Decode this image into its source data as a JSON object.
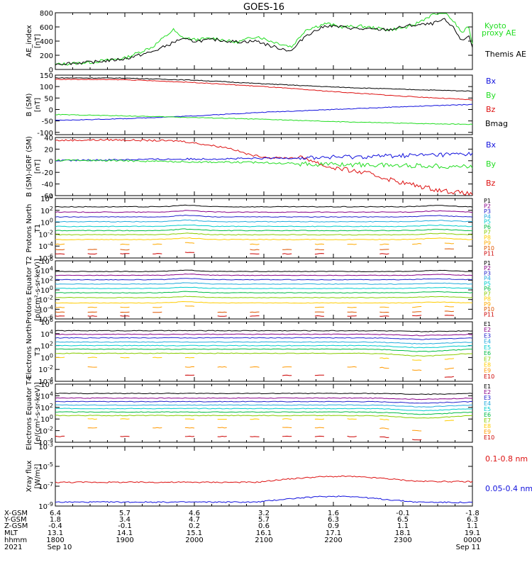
{
  "title": "GOES-16",
  "colors": {
    "black": "#000000",
    "green": "#22dd22",
    "red": "#dd1111",
    "blue": "#1111dd",
    "P": [
      "#000000",
      "#880088",
      "#2222cc",
      "#22aadd",
      "#00cccc",
      "#00bb44",
      "#88cc00",
      "#ffcc00",
      "#ffaa00",
      "#dd5500",
      "#cc0000"
    ],
    "E": [
      "#000000",
      "#880088",
      "#2222cc",
      "#22aadd",
      "#00cccc",
      "#00bb44",
      "#88cc00",
      "#ffcc00",
      "#ff9900",
      "#cc0000"
    ]
  },
  "time_axis": {
    "hhmm": [
      "1800",
      "1900",
      "2000",
      "2100",
      "2200",
      "2300",
      "0000"
    ],
    "xgsm": [
      "6.4",
      "5.7",
      "4.6",
      "3.2",
      "1.6",
      "-0.1",
      "-1.8"
    ],
    "ygsm": [
      "1.8",
      "3.4",
      "4.7",
      "5.7",
      "6.3",
      "6.5",
      "6.3"
    ],
    "zgsm": [
      "-0.4",
      "-0.1",
      "0.2",
      "0.6",
      "0.9",
      "1.1",
      "1.1"
    ],
    "mlt": [
      "13.1",
      "14.1",
      "15.1",
      "16.1",
      "17.1",
      "18.1",
      "19.1"
    ],
    "row_labels": [
      "X-GSM",
      "Y-GSM",
      "Z-GSM",
      "MLT",
      "hhmm",
      "2021"
    ],
    "date_start": "Sep 10",
    "date_end": "Sep 11"
  },
  "chart_data": [
    {
      "type": "line",
      "id": "ae",
      "ylabel": "AE_index [nT]",
      "ylim": [
        0,
        800
      ],
      "yticks": [
        "0",
        "200",
        "400",
        "600",
        "800"
      ],
      "legend": [
        "Kyoto proxy AE",
        "Themis AE"
      ],
      "series": [
        {
          "name": "Kyoto proxy AE",
          "color": "green",
          "x": [
            18.0,
            18.5,
            19.0,
            19.4,
            19.7,
            19.8,
            20.0,
            20.3,
            20.6,
            20.9,
            21.1,
            21.4,
            21.6,
            21.9,
            22.1,
            22.4,
            22.8,
            23.1,
            23.4,
            23.6,
            23.75,
            23.85,
            23.95,
            24.0
          ],
          "y": [
            70,
            100,
            160,
            320,
            560,
            460,
            420,
            440,
            380,
            470,
            400,
            320,
            560,
            650,
            600,
            610,
            560,
            600,
            760,
            820,
            650,
            520,
            600,
            350
          ]
        },
        {
          "name": "Themis AE",
          "color": "black",
          "x": [
            18.0,
            18.5,
            19.0,
            19.4,
            19.7,
            19.8,
            20.0,
            20.3,
            20.6,
            20.9,
            21.1,
            21.4,
            21.6,
            21.9,
            22.1,
            22.4,
            22.8,
            23.1,
            23.4,
            23.6,
            23.75,
            23.85,
            23.95,
            24.0
          ],
          "y": [
            80,
            100,
            150,
            250,
            380,
            430,
            400,
            420,
            390,
            400,
            330,
            260,
            480,
            620,
            600,
            570,
            560,
            620,
            640,
            700,
            560,
            400,
            480,
            320
          ]
        }
      ]
    },
    {
      "type": "line",
      "id": "bsm",
      "ylabel": "B (SM) [nT]",
      "ylim": [
        -110,
        150
      ],
      "yticks": [
        "150",
        "100",
        "50",
        "0",
        "-50",
        "-100"
      ],
      "legend": [
        "Bx",
        "By",
        "Bz",
        "Bmag"
      ],
      "series": [
        {
          "name": "Bmag",
          "color": "black",
          "x": [
            18,
            19,
            20,
            21,
            22,
            23,
            24
          ],
          "y": [
            138,
            137,
            128,
            112,
            98,
            88,
            80
          ]
        },
        {
          "name": "Bz",
          "color": "red",
          "x": [
            18,
            19,
            20,
            21,
            22,
            23,
            24
          ],
          "y": [
            132,
            130,
            118,
            100,
            78,
            58,
            42
          ]
        },
        {
          "name": "Bx",
          "color": "blue",
          "x": [
            18,
            19,
            20,
            21,
            22,
            23,
            24
          ],
          "y": [
            -48,
            -40,
            -28,
            -12,
            0,
            12,
            22
          ]
        },
        {
          "name": "By",
          "color": "green",
          "x": [
            18,
            19,
            20,
            21,
            22,
            23,
            24
          ],
          "y": [
            -22,
            -28,
            -35,
            -43,
            -53,
            -60,
            -65
          ]
        }
      ]
    },
    {
      "type": "line",
      "id": "bigrf",
      "ylabel": "B (SM)-IGRF (SM) [nT]",
      "ylim": [
        -60,
        40
      ],
      "yticks": [
        "40",
        "20",
        "0",
        "-20",
        "-40",
        "-60"
      ],
      "legend": [
        "Bx",
        "By",
        "Bz"
      ],
      "series": [
        {
          "name": "Bz",
          "color": "red",
          "x": [
            18,
            18.8,
            19.8,
            20.5,
            20.8,
            21.1,
            21.6,
            21.9,
            22.5,
            23.0,
            23.5,
            24.0
          ],
          "y": [
            35,
            36,
            34,
            22,
            10,
            5,
            5,
            -10,
            -22,
            -38,
            -50,
            -58
          ]
        },
        {
          "name": "Bx",
          "color": "blue",
          "x": [
            18,
            19,
            20,
            21,
            22,
            23,
            24
          ],
          "y": [
            0,
            2,
            3,
            4,
            6,
            9,
            12
          ]
        },
        {
          "name": "By",
          "color": "green",
          "x": [
            18,
            19,
            20,
            21,
            21.7,
            22,
            23,
            24
          ],
          "y": [
            1,
            0,
            -2,
            -3,
            -6,
            -6,
            -8,
            -10
          ]
        }
      ]
    },
    {
      "type": "line",
      "id": "p1",
      "scale": "log",
      "ylabel": "Protons North T1",
      "ylim_exp": [
        -6,
        4
      ],
      "yticks": [
        "10^4",
        "10^2",
        "10^0",
        "10^-2",
        "10^-4",
        "10^-6"
      ],
      "legend": [
        "P1",
        "P2",
        "P3",
        "P4",
        "P5",
        "P6",
        "P7",
        "P8",
        "P9",
        "P10",
        "P11"
      ],
      "levels": [
        2.6,
        1.7,
        0.9,
        0.1,
        -0.7,
        -1.4,
        -2.1,
        -2.9,
        -3.7,
        -4.6,
        -5.3
      ]
    },
    {
      "type": "line",
      "id": "p2",
      "scale": "log",
      "ylabel": "Protons Equator T2 [p/(cm²-s-sr-keV)]",
      "ylim_exp": [
        -6,
        6
      ],
      "yticks": [
        "10^6",
        "10^4",
        "10^2",
        "10^0",
        "10^-2",
        "10^-4",
        "10^-6"
      ],
      "legend": [
        "P1",
        "P2",
        "P3",
        "P4",
        "P5",
        "P6",
        "P7",
        "P8",
        "P9",
        "P10",
        "P11"
      ],
      "levels": [
        3.8,
        3.0,
        2.1,
        1.2,
        0.3,
        -0.6,
        -1.6,
        -2.7,
        -3.6,
        -4.6,
        -5.4
      ]
    },
    {
      "type": "line",
      "id": "e3",
      "scale": "log",
      "ylabel": "Electrons North T3",
      "ylim_exp": [
        -4,
        6
      ],
      "yticks": [
        "10^6",
        "10^4",
        "10^2",
        "10^0",
        "10^-2",
        "10^-4"
      ],
      "legend": [
        "E1",
        "E2",
        "E3",
        "E4",
        "E5",
        "E6",
        "E7",
        "E8",
        "E9",
        "E10"
      ],
      "levels": [
        4.5,
        3.9,
        3.3,
        2.6,
        2.0,
        1.4,
        0.7,
        0.0,
        -1.6,
        -3.0
      ]
    },
    {
      "type": "line",
      "id": "e4",
      "scale": "log",
      "ylabel": "Electrons Equator T4 [e/(cm²-s-sr-keV)]",
      "ylim_exp": [
        -4,
        6
      ],
      "yticks": [
        "10^6",
        "10^4",
        "10^2",
        "10^0",
        "10^-2",
        "10^-4"
      ],
      "legend": [
        "E1",
        "E2",
        "E3",
        "E4",
        "E5",
        "E6",
        "E7",
        "E8",
        "E9",
        "E10"
      ],
      "levels": [
        4.4,
        3.6,
        3.0,
        2.4,
        1.8,
        1.2,
        0.6,
        0.0,
        -1.5,
        -3.0
      ]
    },
    {
      "type": "line",
      "id": "xray",
      "scale": "log",
      "ylabel": "Xray flux [W/m²]",
      "ylim_exp": [
        -9,
        -3
      ],
      "yticks": [
        "10^-3",
        "10^-5",
        "10^-7",
        "10^-9"
      ],
      "legend": [
        "0.1-0.8 nm",
        "0.05-0.4 nm"
      ],
      "series": [
        {
          "name": "0.1-0.8 nm",
          "color": "red",
          "x": [
            18,
            19,
            20,
            20.9,
            21.3,
            21.8,
            22.2,
            22.7,
            23.2,
            24
          ],
          "y": [
            -6.6,
            -6.6,
            -6.6,
            -6.6,
            -6.3,
            -6.05,
            -6.0,
            -6.2,
            -6.5,
            -6.55
          ]
        },
        {
          "name": "0.05-0.4 nm",
          "color": "blue",
          "x": [
            18,
            19,
            20,
            20.9,
            21.3,
            21.8,
            22.2,
            22.7,
            23.2,
            24
          ],
          "y": [
            -8.6,
            -8.6,
            -8.6,
            -8.6,
            -8.3,
            -8.05,
            -8.0,
            -8.3,
            -8.6,
            -8.65
          ]
        }
      ]
    }
  ]
}
